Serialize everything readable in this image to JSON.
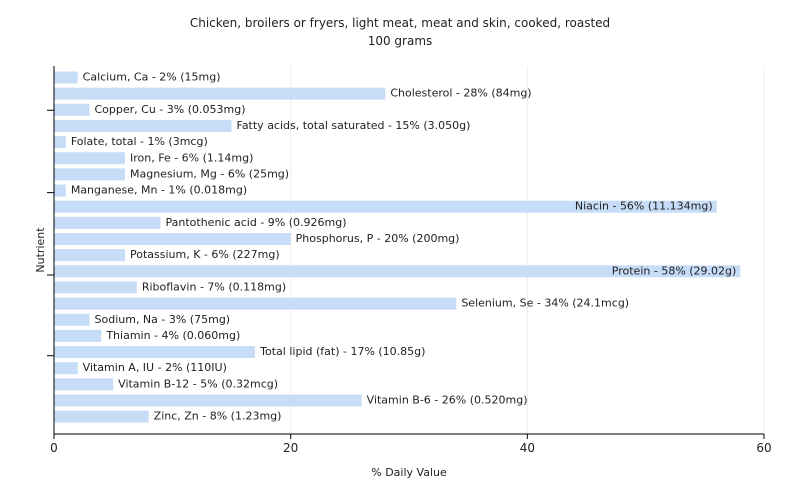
{
  "chart_data": {
    "type": "bar",
    "orientation": "horizontal",
    "title": "Chicken, broilers or fryers, light meat, meat and skin, cooked, roasted",
    "subtitle": "100 grams",
    "xlabel": "% Daily Value",
    "ylabel": "Nutrient",
    "xlim": [
      0,
      60
    ],
    "xticks": [
      "0",
      "20",
      "40",
      "60"
    ],
    "grid": true,
    "bar_color": "#c6dcf7",
    "categories": [
      "Calcium, Ca",
      "Cholesterol",
      "Copper, Cu",
      "Fatty acids, total saturated",
      "Folate, total",
      "Iron, Fe",
      "Magnesium, Mg",
      "Manganese, Mn",
      "Niacin",
      "Pantothenic acid",
      "Phosphorus, P",
      "Potassium, K",
      "Protein",
      "Riboflavin",
      "Selenium, Se",
      "Sodium, Na",
      "Thiamin",
      "Total lipid (fat)",
      "Vitamin A, IU",
      "Vitamin B-12",
      "Vitamin B-6",
      "Zinc, Zn"
    ],
    "values": [
      2,
      28,
      3,
      15,
      1,
      6,
      6,
      1,
      56,
      9,
      20,
      6,
      58,
      7,
      34,
      3,
      4,
      17,
      2,
      5,
      26,
      8
    ],
    "labels": [
      "Calcium, Ca - 2% (15mg)",
      "Cholesterol - 28% (84mg)",
      "Copper, Cu - 3% (0.053mg)",
      "Fatty acids, total saturated - 15% (3.050g)",
      "Folate, total - 1% (3mcg)",
      "Iron, Fe - 6% (1.14mg)",
      "Magnesium, Mg - 6% (25mg)",
      "Manganese, Mn - 1% (0.018mg)",
      "Niacin - 56% (11.134mg)",
      "Pantothenic acid - 9% (0.926mg)",
      "Phosphorus, P - 20% (200mg)",
      "Potassium, K - 6% (227mg)",
      "Protein - 58% (29.02g)",
      "Riboflavin - 7% (0.118mg)",
      "Selenium, Se - 34% (24.1mcg)",
      "Sodium, Na - 3% (75mg)",
      "Thiamin - 4% (0.060mg)",
      "Total lipid (fat) - 17% (10.85g)",
      "Vitamin A, IU - 2% (110IU)",
      "Vitamin B-12 - 5% (0.32mcg)",
      "Vitamin B-6 - 26% (0.520mg)",
      "Zinc, Zn - 8% (1.23mg)"
    ]
  }
}
